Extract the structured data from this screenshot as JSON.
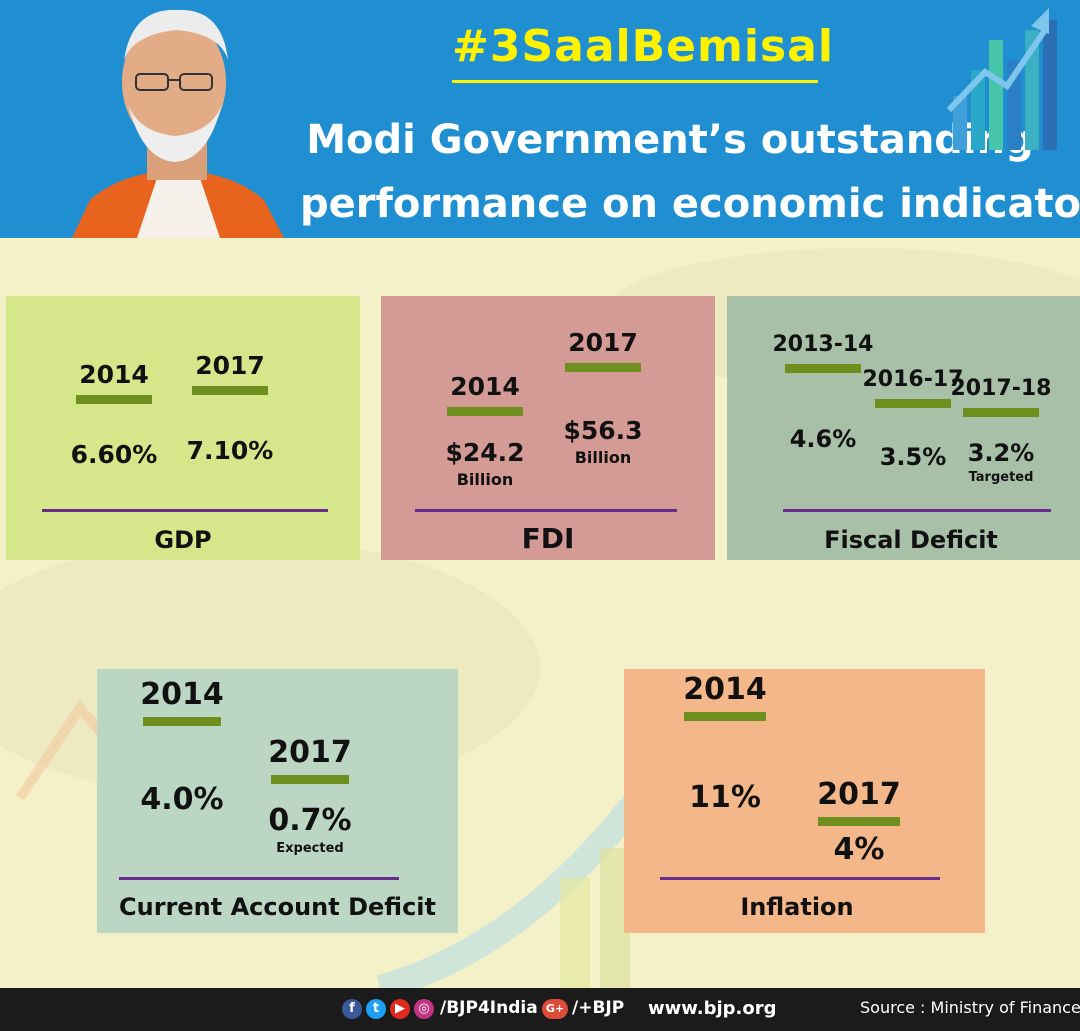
{
  "header": {
    "hashtag": "#3SaalBemisal",
    "headline_line1": "Modi Government’s outstanding",
    "headline_line2": "performance on economic indicators"
  },
  "colors": {
    "header_bg": "#1f8fd2",
    "hashtag": "#fff200",
    "bar_yellow": "#ffd30a",
    "bar_brown": "#a88a60",
    "bar_cap": "#6e8f1e",
    "baseline": "#6a2c8a",
    "gdp_panel": "#d6e68a",
    "fdi_panel": "#d49a95",
    "fiscal_panel": "#a8c0a8",
    "cad_panel": "#bcd6c4",
    "inflation_panel": "#f4b78a",
    "footer_bg": "#1b1b1b"
  },
  "chart_data": [
    {
      "type": "bar",
      "title": "GDP",
      "categories": [
        "2014",
        "2017"
      ],
      "values": [
        6.6,
        7.1
      ],
      "value_labels": [
        "6.60%",
        "7.10%"
      ],
      "value_sublabels": [
        "",
        ""
      ],
      "bar_colors": [
        "brown",
        "yellow"
      ],
      "unit": "%"
    },
    {
      "type": "bar",
      "title": "FDI",
      "categories": [
        "2014",
        "2017"
      ],
      "values": [
        24.2,
        56.3
      ],
      "value_labels": [
        "$24.2",
        "$56.3"
      ],
      "value_sublabels": [
        "Billion",
        "Billion"
      ],
      "bar_colors": [
        "brown",
        "yellow"
      ],
      "unit": "$ Billion"
    },
    {
      "type": "bar",
      "title": "Fiscal Deficit",
      "categories": [
        "2013-14",
        "2016-17",
        "2017-18"
      ],
      "values": [
        4.6,
        3.5,
        3.2
      ],
      "value_labels": [
        "4.6%",
        "3.5%",
        "3.2%"
      ],
      "value_sublabels": [
        "",
        "",
        "Targeted"
      ],
      "bar_colors": [
        "yellow",
        "yellow",
        "brown"
      ],
      "unit": "%"
    },
    {
      "type": "bar",
      "title": "Current Account Deficit",
      "categories": [
        "2014",
        "2017"
      ],
      "values": [
        4.0,
        0.7
      ],
      "value_labels": [
        "4.0%",
        "0.7%"
      ],
      "value_sublabels": [
        "",
        "Expected"
      ],
      "bar_colors": [
        "yellow",
        "brown"
      ],
      "unit": "%"
    },
    {
      "type": "bar",
      "title": "Inflation",
      "categories": [
        "2014",
        "2017"
      ],
      "values": [
        11,
        4
      ],
      "value_labels": [
        "11%",
        "4%"
      ],
      "value_sublabels": [
        "",
        ""
      ],
      "bar_colors": [
        "yellow",
        "brown"
      ],
      "unit": "%"
    }
  ],
  "footer": {
    "social_icons": [
      "facebook-icon",
      "twitter-icon",
      "youtube-icon",
      "instagram-icon"
    ],
    "handle": "/BJP4India",
    "gplus_icon": "google-plus-icon",
    "gplus_label": "G+",
    "gplus_handle": "/+BJP",
    "website": "www.bjp.org",
    "source": "Source : Ministry of Finance"
  }
}
